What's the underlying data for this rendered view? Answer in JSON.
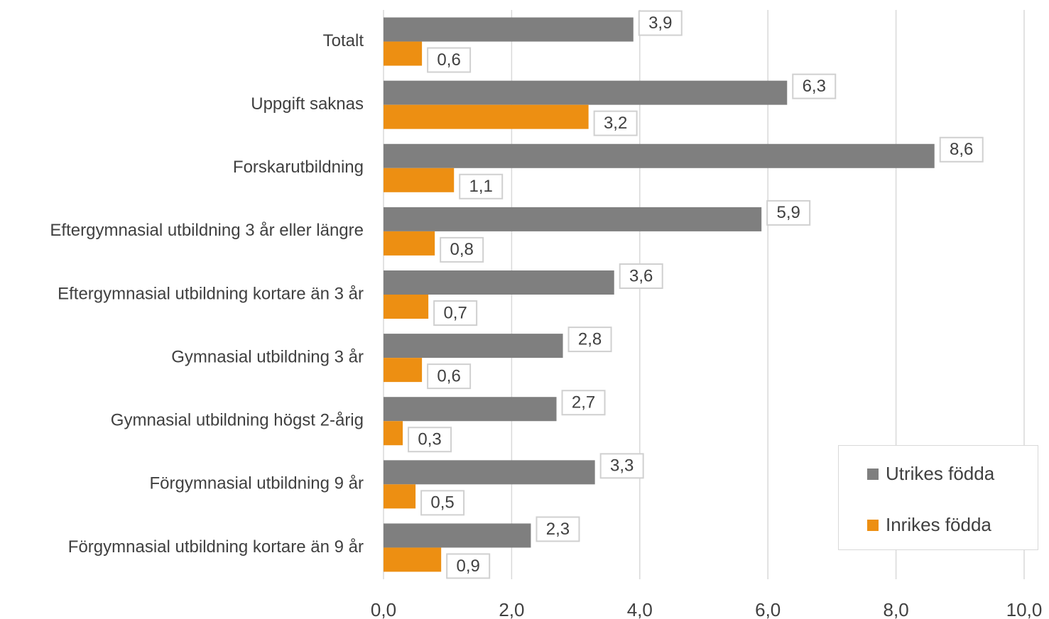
{
  "chart_data": {
    "type": "bar",
    "orientation": "horizontal",
    "categories": [
      "Totalt",
      "Uppgift saknas",
      "Forskarutbildning",
      "Eftergymnasial utbildning 3 år eller längre",
      "Eftergymnasial utbildning kortare än 3 år",
      "Gymnasial utbildning 3 år",
      "Gymnasial utbildning högst 2-årig",
      "Förgymnasial utbildning 9 år",
      "Förgymnasial utbildning kortare än 9 år"
    ],
    "series": [
      {
        "name": "Utrikes födda",
        "color": "#7f7f7f",
        "values": [
          3.9,
          6.3,
          8.6,
          5.9,
          3.6,
          2.8,
          2.7,
          3.3,
          2.3
        ],
        "labels": [
          "3,9",
          "6,3",
          "8,6",
          "5,9",
          "3,6",
          "2,8",
          "2,7",
          "3,3",
          "2,3"
        ]
      },
      {
        "name": "Inrikes födda",
        "color": "#ed8f12",
        "values": [
          0.6,
          3.2,
          1.1,
          0.8,
          0.7,
          0.6,
          0.3,
          0.5,
          0.9
        ],
        "labels": [
          "0,6",
          "3,2",
          "1,1",
          "0,8",
          "0,7",
          "0,6",
          "0,3",
          "0,5",
          "0,9"
        ]
      }
    ],
    "xlim": [
      0,
      10
    ],
    "xticks": [
      0,
      2,
      4,
      6,
      8,
      10
    ],
    "xtick_labels": [
      "0,0",
      "2,0",
      "4,0",
      "6,0",
      "8,0",
      "10,0"
    ],
    "grid": true,
    "legend_position": "bottom-right",
    "title": "",
    "xlabel": "",
    "ylabel": ""
  }
}
